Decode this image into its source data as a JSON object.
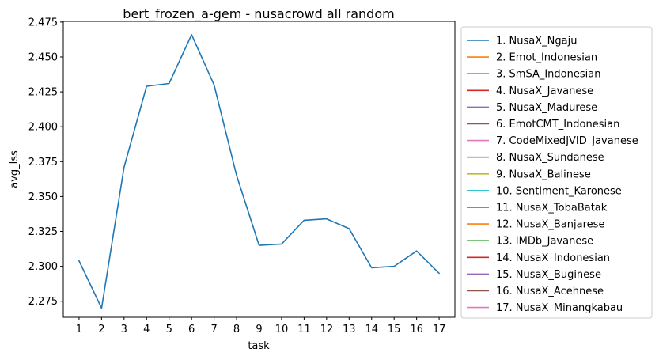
{
  "chart_data": {
    "type": "line",
    "title": "bert_frozen_a-gem - nusacrowd all random",
    "xlabel": "task",
    "ylabel": "avg_lss",
    "x": [
      1,
      2,
      3,
      4,
      5,
      6,
      7,
      8,
      9,
      10,
      11,
      12,
      13,
      14,
      15,
      16,
      17
    ],
    "xlim": [
      0.3,
      17.7
    ],
    "ylim": [
      2.2635,
      2.4755
    ],
    "yticks": [
      "2.275",
      "2.300",
      "2.325",
      "2.350",
      "2.375",
      "2.400",
      "2.425",
      "2.450",
      "2.475"
    ],
    "grid": false,
    "legend_position": "outside-right",
    "series": [
      {
        "name": "1. NusaX_Ngaju",
        "color": "#1f77b4",
        "values": [
          2.304,
          2.27,
          2.371,
          2.429,
          2.431,
          2.466,
          2.43,
          2.365,
          2.315,
          2.316,
          2.333,
          2.334,
          2.327,
          2.299,
          2.3,
          2.311,
          2.295
        ]
      }
    ],
    "legend": [
      {
        "label": "1. NusaX_Ngaju",
        "color": "#1f77b4"
      },
      {
        "label": "2. Emot_Indonesian",
        "color": "#ff7f0e"
      },
      {
        "label": "3. SmSA_Indonesian",
        "color": "#2ca02c"
      },
      {
        "label": "4. NusaX_Javanese",
        "color": "#d62728"
      },
      {
        "label": "5. NusaX_Madurese",
        "color": "#9467bd"
      },
      {
        "label": "6. EmotCMT_Indonesian",
        "color": "#8c564b"
      },
      {
        "label": "7. CodeMixedJVID_Javanese",
        "color": "#e377c2"
      },
      {
        "label": "8. NusaX_Sundanese",
        "color": "#7f7f7f"
      },
      {
        "label": "9. NusaX_Balinese",
        "color": "#bcbd22"
      },
      {
        "label": "10. Sentiment_Karonese",
        "color": "#17becf"
      },
      {
        "label": "11. NusaX_TobaBatak",
        "color": "#1f77b4"
      },
      {
        "label": "12. NusaX_Banjarese",
        "color": "#ff7f0e"
      },
      {
        "label": "13. IMDb_Javanese",
        "color": "#2ca02c"
      },
      {
        "label": "14. NusaX_Indonesian",
        "color": "#d62728"
      },
      {
        "label": "15. NusaX_Buginese",
        "color": "#9467bd"
      },
      {
        "label": "16. NusaX_Acehnese",
        "color": "#8c564b"
      },
      {
        "label": "17. NusaX_Minangkabau",
        "color": "#e377c2"
      }
    ]
  }
}
